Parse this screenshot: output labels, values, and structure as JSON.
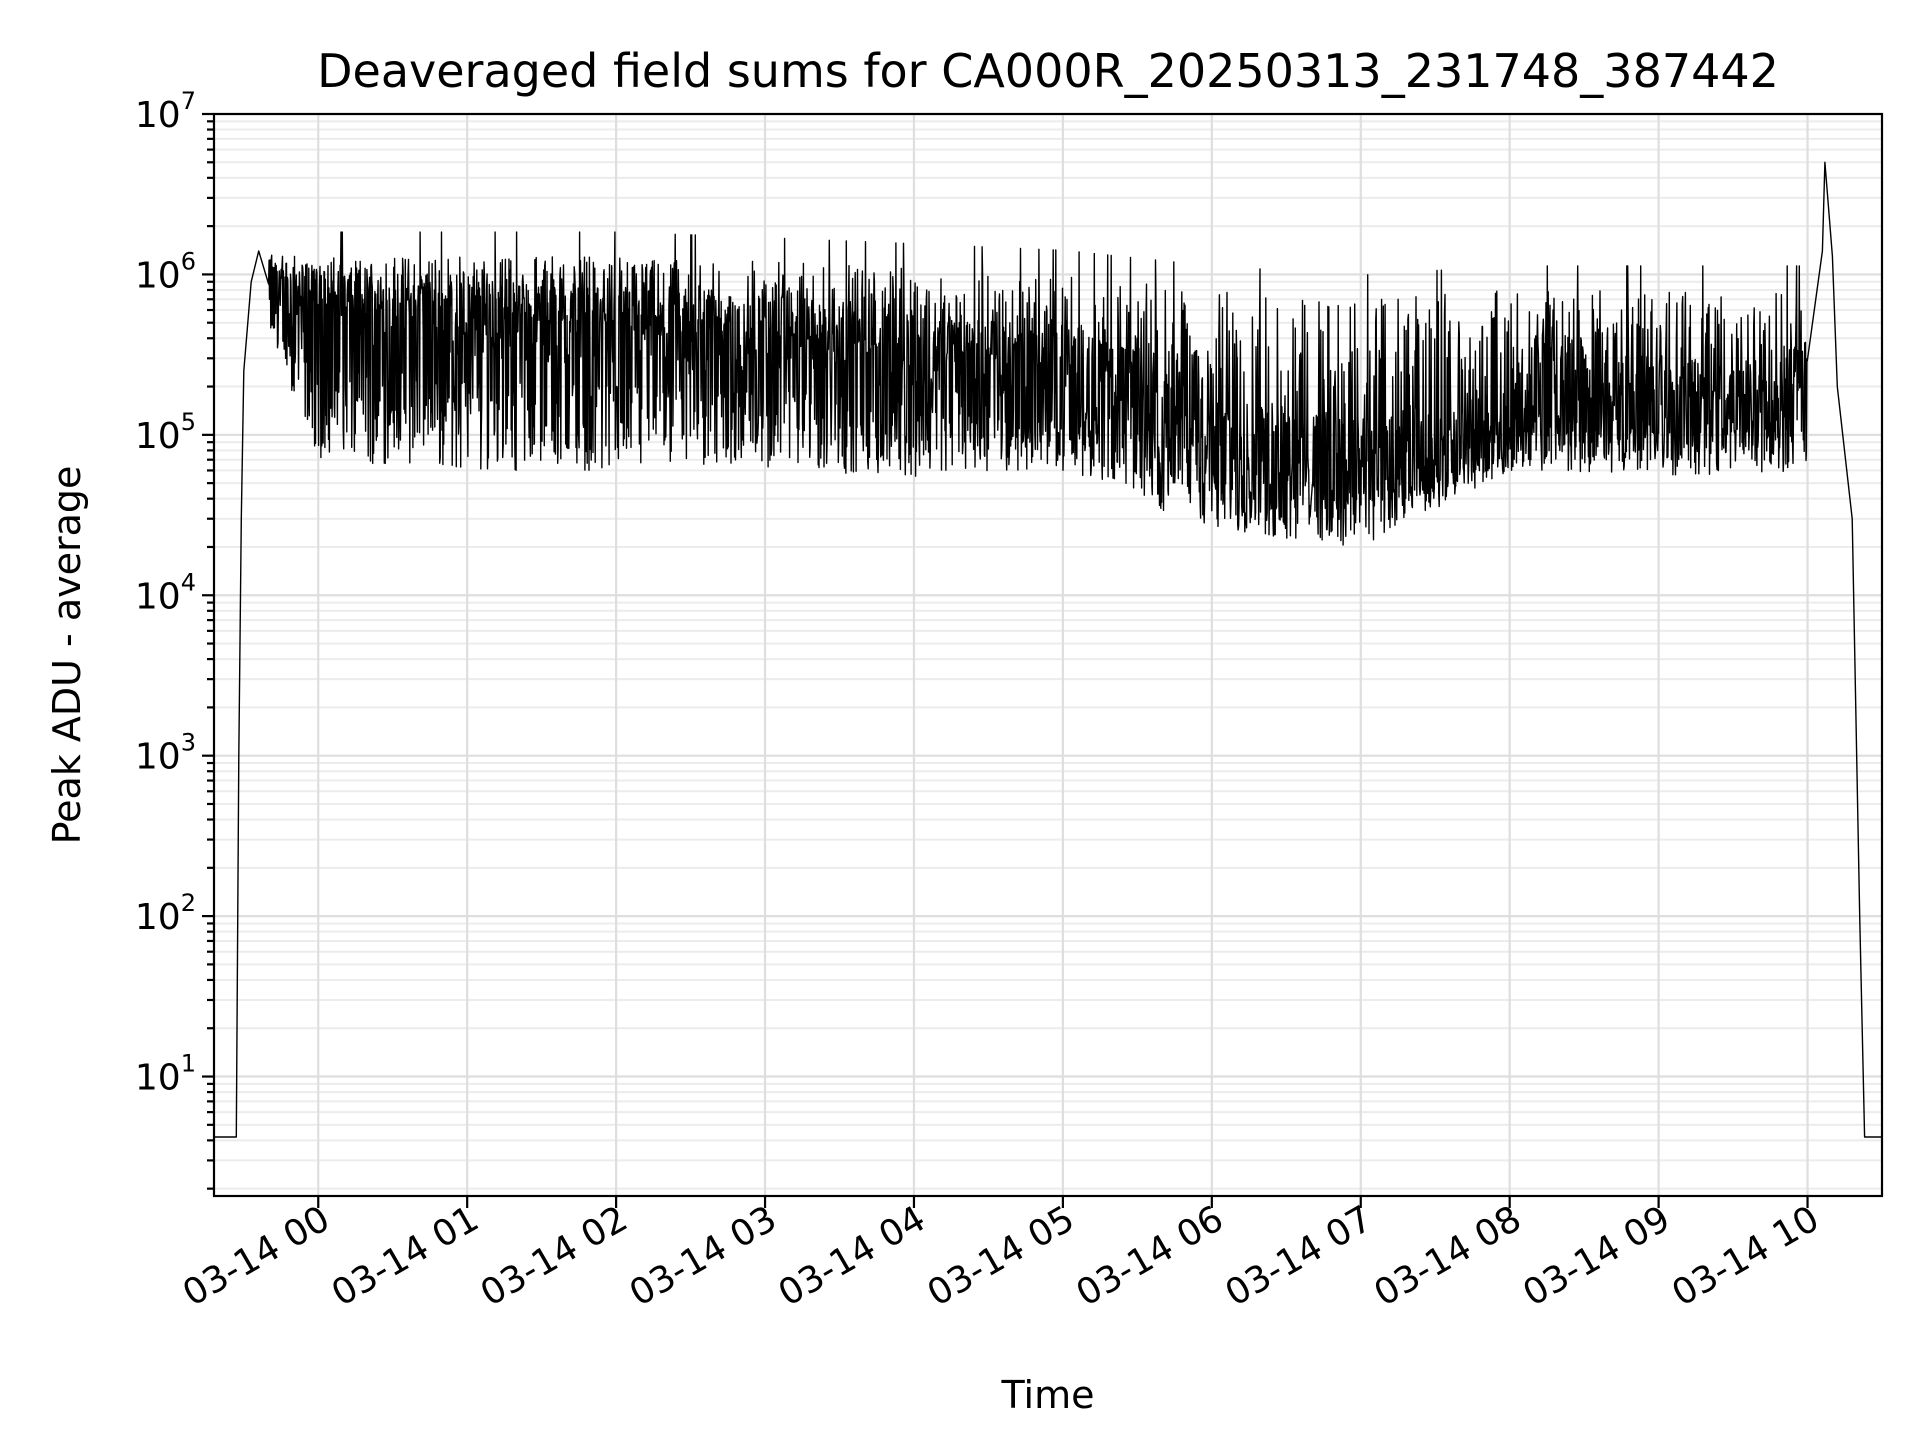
{
  "chart_data": {
    "type": "line",
    "title": "Deaveraged field sums for CA000R_20250313_231748_387442",
    "xlabel": "Time",
    "ylabel": "Peak ADU - average",
    "yscale": "log",
    "ylim": [
      1.8,
      10000000
    ],
    "xlim": [
      "03-13 23:18",
      "03-14 10:30"
    ],
    "x_ticks": [
      "03-14 00",
      "03-14 01",
      "03-14 02",
      "03-14 03",
      "03-14 04",
      "03-14 05",
      "03-14 06",
      "03-14 07",
      "03-14 08",
      "03-14 09",
      "03-14 10"
    ],
    "y_ticks": [
      {
        "base": "10",
        "exp": "1",
        "value": 10
      },
      {
        "base": "10",
        "exp": "2",
        "value": 100
      },
      {
        "base": "10",
        "exp": "3",
        "value": 1000
      },
      {
        "base": "10",
        "exp": "4",
        "value": 10000
      },
      {
        "base": "10",
        "exp": "5",
        "value": 100000
      },
      {
        "base": "10",
        "exp": "6",
        "value": 1000000
      },
      {
        "base": "10",
        "exp": "7",
        "value": 10000000
      }
    ],
    "grid": "major and minor",
    "line_color": "#000000",
    "series": [
      {
        "points": [
          [
            "03-13 23:18",
            4.2
          ],
          [
            "03-13 23:27",
            4.2
          ],
          [
            "03-13 23:28",
            1000
          ],
          [
            "03-13 23:29",
            30000
          ],
          [
            "03-13 23:30",
            250000
          ],
          [
            "03-13 23:33",
            900000
          ],
          [
            "03-13 23:36",
            1400000
          ],
          [
            "03-13 23:45",
            800000
          ],
          [
            "03-14 00:00",
            650000
          ],
          [
            "03-14 00:30",
            600000
          ],
          [
            "03-14 01:00",
            550000
          ],
          [
            "03-14 01:30",
            500000
          ],
          [
            "03-14 02:00",
            480000
          ],
          [
            "03-14 02:30",
            420000
          ],
          [
            "03-14 03:00",
            420000
          ],
          [
            "03-14 03:30",
            380000
          ],
          [
            "03-14 04:00",
            330000
          ],
          [
            "03-14 04:30",
            300000
          ],
          [
            "03-14 05:00",
            260000
          ],
          [
            "03-14 05:30",
            200000
          ],
          [
            "03-14 06:00",
            110000
          ],
          [
            "03-14 06:30",
            85000
          ],
          [
            "03-14 07:00",
            75000
          ],
          [
            "03-14 07:30",
            80000
          ],
          [
            "03-14 08:00",
            110000
          ],
          [
            "03-14 08:15",
            280000
          ],
          [
            "03-14 08:30",
            200000
          ],
          [
            "03-14 09:00",
            170000
          ],
          [
            "03-14 09:30",
            170000
          ],
          [
            "03-14 10:00",
            230000
          ],
          [
            "03-14 10:06",
            1400000
          ],
          [
            "03-14 10:07",
            5000000
          ],
          [
            "03-14 10:10",
            1300000
          ],
          [
            "03-14 10:12",
            200000
          ],
          [
            "03-14 10:18",
            30000
          ],
          [
            "03-14 10:21",
            100
          ],
          [
            "03-14 10:23",
            4.2
          ],
          [
            "03-14 10:30",
            4.2
          ]
        ],
        "envelope_upper": [
          [
            "03-13 23:40",
            1300000
          ],
          [
            "03-14 00:00",
            1300000
          ],
          [
            "03-14 01:00",
            1300000
          ],
          [
            "03-14 02:00",
            1300000
          ],
          [
            "03-14 03:00",
            1200000
          ],
          [
            "03-14 04:00",
            1100000
          ],
          [
            "03-14 05:00",
            1000000
          ],
          [
            "03-14 06:00",
            800000
          ],
          [
            "03-14 07:00",
            700000
          ],
          [
            "03-14 08:00",
            800000
          ],
          [
            "03-14 09:00",
            800000
          ],
          [
            "03-14 10:00",
            800000
          ]
        ],
        "envelope_lower": [
          [
            "03-13 23:40",
            450000
          ],
          [
            "03-14 00:00",
            70000
          ],
          [
            "03-14 01:00",
            60000
          ],
          [
            "03-14 02:00",
            60000
          ],
          [
            "03-14 03:00",
            60000
          ],
          [
            "03-14 04:00",
            55000
          ],
          [
            "03-14 05:00",
            60000
          ],
          [
            "03-14 06:00",
            25000
          ],
          [
            "03-14 07:00",
            20000
          ],
          [
            "03-14 08:00",
            60000
          ],
          [
            "03-14 09:00",
            55000
          ],
          [
            "03-14 10:00",
            60000
          ]
        ]
      }
    ]
  }
}
